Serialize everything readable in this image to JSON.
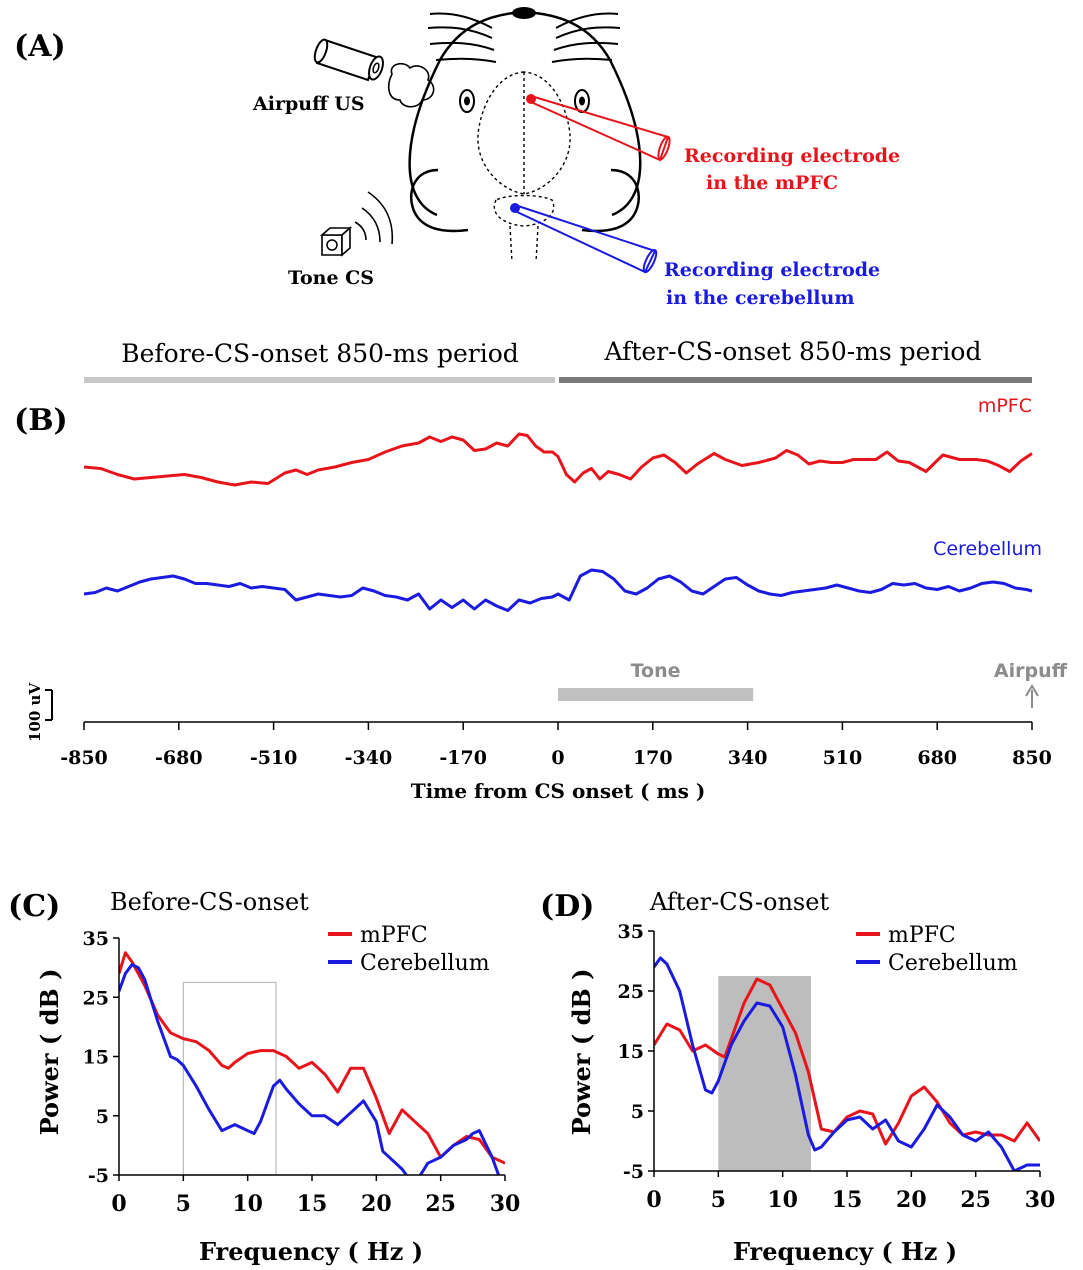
{
  "panels": {
    "a_label": "(A)",
    "b_label": "(B)",
    "c_label": "(C)",
    "d_label": "(D)"
  },
  "schematic": {
    "airpuff_label": "Airpuff US",
    "tone_label": "Tone  CS",
    "mpfc_electrode_line1": "Recording electrode",
    "mpfc_electrode_line2": "in the mPFC",
    "cb_electrode_line1": "Recording electrode",
    "cb_electrode_line2": "in the cerebellum",
    "mpfc_color": "#e8141b",
    "cb_color": "#1a1ae0"
  },
  "traces": {
    "period_before": "Before-CS-onset 850-ms period",
    "period_after": "After-CS-onset 850-ms period",
    "mpfc_label": "mPFC",
    "cb_label": "Cerebellum",
    "tone_label": "Tone",
    "airpuff_label": "Airpuff",
    "scale_label": "100 uV",
    "scale_uv": 100,
    "xlabel": "Time from CS onset ( ms )",
    "xticks": [
      -850,
      -680,
      -510,
      -340,
      -170,
      0,
      170,
      340,
      510,
      680,
      850
    ],
    "xlim": [
      -850,
      850
    ],
    "tone_interval_ms": [
      0,
      350
    ],
    "airpuff_ms": 850,
    "mpfc_trace_uv": [
      [
        -850,
        -30
      ],
      [
        -820,
        -35
      ],
      [
        -790,
        -55
      ],
      [
        -760,
        -70
      ],
      [
        -730,
        -65
      ],
      [
        -700,
        -60
      ],
      [
        -670,
        -55
      ],
      [
        -640,
        -65
      ],
      [
        -610,
        -80
      ],
      [
        -580,
        -90
      ],
      [
        -550,
        -80
      ],
      [
        -520,
        -85
      ],
      [
        -490,
        -50
      ],
      [
        -470,
        -40
      ],
      [
        -450,
        -55
      ],
      [
        -430,
        -40
      ],
      [
        -400,
        -30
      ],
      [
        -370,
        -15
      ],
      [
        -340,
        -5
      ],
      [
        -310,
        20
      ],
      [
        -280,
        40
      ],
      [
        -250,
        50
      ],
      [
        -230,
        70
      ],
      [
        -210,
        55
      ],
      [
        -190,
        70
      ],
      [
        -170,
        60
      ],
      [
        -150,
        25
      ],
      [
        -130,
        30
      ],
      [
        -110,
        50
      ],
      [
        -90,
        40
      ],
      [
        -70,
        80
      ],
      [
        -55,
        75
      ],
      [
        -40,
        40
      ],
      [
        -25,
        20
      ],
      [
        -10,
        20
      ],
      [
        0,
        5
      ],
      [
        15,
        -55
      ],
      [
        30,
        -80
      ],
      [
        45,
        -50
      ],
      [
        60,
        -35
      ],
      [
        75,
        -70
      ],
      [
        90,
        -45
      ],
      [
        110,
        -55
      ],
      [
        130,
        -70
      ],
      [
        150,
        -30
      ],
      [
        170,
        0
      ],
      [
        190,
        10
      ],
      [
        210,
        -15
      ],
      [
        230,
        -50
      ],
      [
        250,
        -20
      ],
      [
        280,
        15
      ],
      [
        300,
        -5
      ],
      [
        330,
        -25
      ],
      [
        360,
        -15
      ],
      [
        390,
        0
      ],
      [
        410,
        25
      ],
      [
        430,
        10
      ],
      [
        450,
        -20
      ],
      [
        470,
        -10
      ],
      [
        490,
        -15
      ],
      [
        510,
        -15
      ],
      [
        530,
        -5
      ],
      [
        550,
        -5
      ],
      [
        570,
        -5
      ],
      [
        590,
        20
      ],
      [
        610,
        -10
      ],
      [
        630,
        -15
      ],
      [
        660,
        -45
      ],
      [
        690,
        10
      ],
      [
        720,
        -5
      ],
      [
        750,
        -5
      ],
      [
        770,
        -10
      ],
      [
        790,
        -25
      ],
      [
        810,
        -45
      ],
      [
        830,
        -10
      ],
      [
        850,
        15
      ]
    ],
    "cb_trace_uv": [
      [
        -850,
        -40
      ],
      [
        -830,
        -35
      ],
      [
        -810,
        -20
      ],
      [
        -790,
        -30
      ],
      [
        -770,
        -15
      ],
      [
        -750,
        0
      ],
      [
        -730,
        10
      ],
      [
        -710,
        15
      ],
      [
        -690,
        20
      ],
      [
        -670,
        10
      ],
      [
        -650,
        -5
      ],
      [
        -630,
        -5
      ],
      [
        -610,
        -10
      ],
      [
        -590,
        -15
      ],
      [
        -570,
        -5
      ],
      [
        -550,
        -20
      ],
      [
        -530,
        -15
      ],
      [
        -510,
        -20
      ],
      [
        -490,
        -25
      ],
      [
        -470,
        -60
      ],
      [
        -450,
        -50
      ],
      [
        -430,
        -40
      ],
      [
        -410,
        -45
      ],
      [
        -390,
        -50
      ],
      [
        -370,
        -45
      ],
      [
        -350,
        -20
      ],
      [
        -330,
        -30
      ],
      [
        -310,
        -45
      ],
      [
        -290,
        -50
      ],
      [
        -270,
        -60
      ],
      [
        -250,
        -40
      ],
      [
        -230,
        -90
      ],
      [
        -210,
        -60
      ],
      [
        -190,
        -85
      ],
      [
        -170,
        -60
      ],
      [
        -150,
        -90
      ],
      [
        -130,
        -60
      ],
      [
        -110,
        -80
      ],
      [
        -90,
        -95
      ],
      [
        -70,
        -60
      ],
      [
        -50,
        -70
      ],
      [
        -30,
        -55
      ],
      [
        -10,
        -50
      ],
      [
        0,
        -40
      ],
      [
        20,
        -60
      ],
      [
        40,
        20
      ],
      [
        60,
        40
      ],
      [
        80,
        35
      ],
      [
        100,
        10
      ],
      [
        120,
        -30
      ],
      [
        140,
        -40
      ],
      [
        160,
        -20
      ],
      [
        180,
        10
      ],
      [
        200,
        20
      ],
      [
        220,
        0
      ],
      [
        240,
        -30
      ],
      [
        260,
        -40
      ],
      [
        280,
        -15
      ],
      [
        300,
        10
      ],
      [
        320,
        15
      ],
      [
        340,
        -10
      ],
      [
        360,
        -30
      ],
      [
        380,
        -40
      ],
      [
        400,
        -45
      ],
      [
        420,
        -35
      ],
      [
        440,
        -30
      ],
      [
        460,
        -25
      ],
      [
        480,
        -20
      ],
      [
        500,
        -10
      ],
      [
        520,
        -20
      ],
      [
        540,
        -30
      ],
      [
        560,
        -35
      ],
      [
        580,
        -25
      ],
      [
        600,
        -5
      ],
      [
        620,
        -10
      ],
      [
        640,
        -5
      ],
      [
        660,
        -20
      ],
      [
        680,
        -25
      ],
      [
        700,
        -15
      ],
      [
        720,
        -30
      ],
      [
        740,
        -20
      ],
      [
        760,
        -5
      ],
      [
        780,
        0
      ],
      [
        800,
        -5
      ],
      [
        820,
        -20
      ],
      [
        840,
        -25
      ],
      [
        850,
        -30
      ]
    ]
  },
  "chart_data": [
    {
      "type": "line",
      "title": "Before-CS-onset",
      "xlabel": "Frequency ( Hz )",
      "ylabel": "Power ( dB )",
      "xlim": [
        0,
        30
      ],
      "ylim": [
        -5,
        35
      ],
      "xticks": [
        0,
        5,
        10,
        15,
        20,
        25,
        30
      ],
      "yticks": [
        -5,
        5,
        15,
        25,
        35
      ],
      "legend_position": "top-right",
      "highlight": {
        "style": "outline",
        "x": [
          5,
          12.2
        ],
        "y": [
          -5,
          27.5
        ]
      },
      "series": [
        {
          "name": "mPFC",
          "color": "#e8141b",
          "x": [
            0,
            0.5,
            1,
            2,
            3,
            4,
            5,
            6,
            7,
            8,
            8.5,
            9,
            10,
            11,
            12,
            13,
            14,
            15,
            16,
            17,
            18,
            19,
            20,
            21,
            22,
            23,
            24,
            25,
            26,
            27,
            28,
            29,
            30
          ],
          "y": [
            29,
            32.5,
            31,
            27,
            22,
            19,
            18,
            17.5,
            16,
            13.5,
            13,
            14,
            15.5,
            16,
            16,
            15,
            13,
            14,
            12,
            9,
            13,
            13,
            8,
            2,
            6,
            4,
            2,
            -2,
            0,
            1.5,
            1,
            -2,
            -3
          ]
        },
        {
          "name": "Cerebellum",
          "color": "#1a1ae0",
          "x": [
            0,
            0.5,
            1,
            1.5,
            2,
            3,
            4,
            4.5,
            5,
            6,
            7,
            8,
            9,
            10,
            10.5,
            11,
            12,
            12.5,
            13,
            14,
            15,
            16,
            17,
            18,
            19,
            20,
            20.5,
            21,
            22,
            22.5,
            23,
            24,
            25,
            26,
            27,
            27.5,
            28,
            29,
            29.5
          ],
          "y": [
            26,
            29,
            30.5,
            30,
            28,
            21,
            15,
            14.5,
            13.5,
            10,
            6,
            2.5,
            3.5,
            2.5,
            2,
            4,
            10,
            11,
            9.5,
            7,
            5,
            5,
            3.5,
            5.5,
            7.5,
            4,
            -1,
            -2,
            -4,
            -5.5,
            -6.5,
            -3,
            -2,
            0,
            1,
            2,
            2.5,
            -2,
            -5
          ]
        }
      ]
    },
    {
      "type": "line",
      "title": "After-CS-onset",
      "xlabel": "Frequency ( Hz )",
      "ylabel": "Power ( dB )",
      "xlim": [
        0,
        30
      ],
      "ylim": [
        -5,
        35
      ],
      "xticks": [
        0,
        5,
        10,
        15,
        20,
        25,
        30
      ],
      "yticks": [
        -5,
        5,
        15,
        25,
        35
      ],
      "legend_position": "top-right",
      "highlight": {
        "style": "shaded",
        "x": [
          5,
          12.2
        ],
        "y": [
          -5,
          27.5
        ]
      },
      "series": [
        {
          "name": "mPFC",
          "color": "#e8141b",
          "x": [
            0,
            1,
            2,
            3,
            4,
            5,
            5.5,
            6,
            7,
            8,
            9,
            10,
            11,
            12,
            13,
            14,
            15,
            16,
            17,
            18,
            19,
            20,
            21,
            22,
            23,
            24,
            25,
            26,
            27,
            28,
            29,
            30
          ],
          "y": [
            16,
            19.5,
            18.5,
            15,
            16,
            14.5,
            14,
            17,
            23,
            27,
            26,
            22,
            18,
            11.5,
            2,
            1.5,
            4,
            5,
            4.5,
            -0.5,
            3,
            7.5,
            9,
            6.5,
            3,
            1,
            1.5,
            1,
            1,
            0,
            3,
            0
          ]
        },
        {
          "name": "Cerebellum",
          "color": "#1a1ae0",
          "x": [
            0,
            0.5,
            1,
            2,
            3,
            4,
            4.5,
            5,
            6,
            7,
            8,
            9,
            10,
            11,
            12,
            12.5,
            13,
            14,
            15,
            16,
            17,
            18,
            19,
            20,
            21,
            22,
            23,
            24,
            25,
            26,
            27,
            28,
            29,
            30
          ],
          "y": [
            29,
            30.5,
            29.5,
            25,
            16,
            8.5,
            8,
            10,
            16,
            20,
            23,
            22.5,
            19,
            11,
            1,
            -1.5,
            -1,
            1.5,
            3.5,
            4,
            2,
            3.5,
            0,
            -1,
            2,
            6,
            4,
            1,
            0,
            1.5,
            -1,
            -5,
            -4,
            -4
          ]
        }
      ]
    }
  ]
}
